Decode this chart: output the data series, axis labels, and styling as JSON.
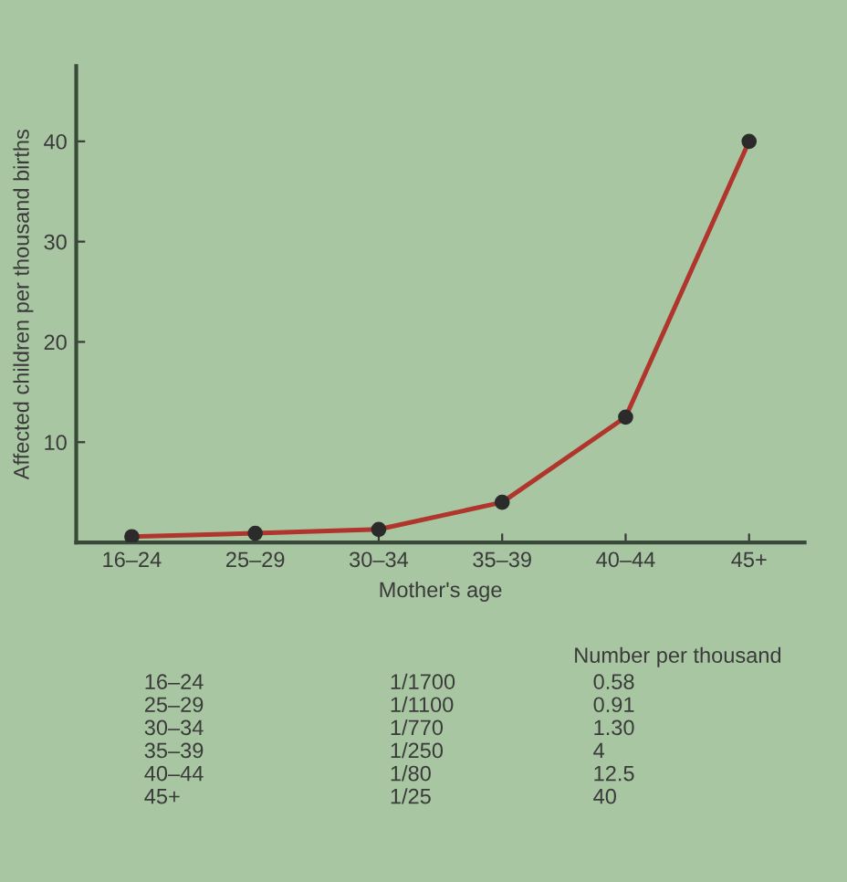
{
  "chart_data": {
    "type": "line",
    "xlabel": "Mother's age",
    "ylabel": "Affected children per thousand births",
    "categories": [
      "16–24",
      "25–29",
      "30–34",
      "35–39",
      "40–44",
      "45+"
    ],
    "series": [
      {
        "color": "#b0352c",
        "values": [
          0.58,
          0.91,
          1.3,
          4,
          12.5,
          40
        ]
      }
    ],
    "ylim": [
      0,
      47.5
    ],
    "yticks": [
      10,
      20,
      30,
      40
    ],
    "marker": "circle",
    "line_style": "solid",
    "grid": false,
    "legend": false,
    "annotations": [
      "Number per thousand",
      "1/1700",
      "1/1100",
      "1/770",
      "1/250",
      "1/80",
      "1/25",
      "0.58",
      "0.91",
      "1.30",
      "4",
      "12.5",
      "40"
    ]
  }
}
